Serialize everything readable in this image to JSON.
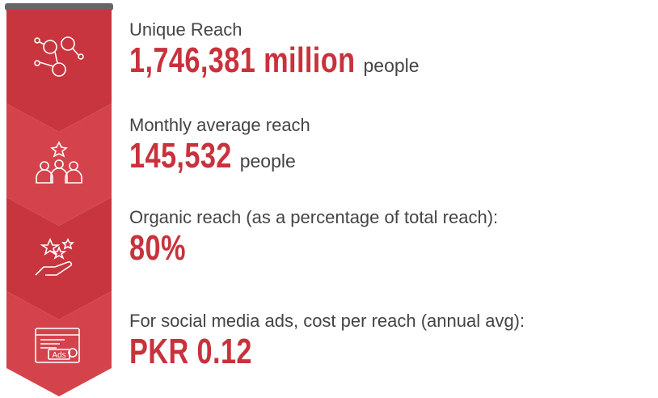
{
  "items": [
    {
      "label": "Unique Reach",
      "value": "1,746,381 million",
      "unit": "people"
    },
    {
      "label": "Monthly average reach",
      "value": "145,532",
      "unit": "people"
    },
    {
      "label": "Organic reach (as a percentage of total reach):",
      "value": "80%"
    },
    {
      "label": "For social media ads, cost per reach (annual avg):",
      "value": "PKR 0.12"
    }
  ]
}
